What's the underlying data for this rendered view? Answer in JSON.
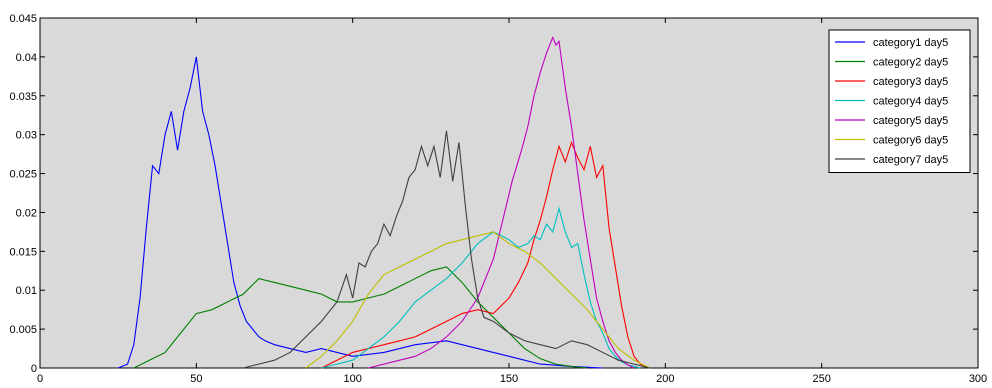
{
  "chart_data": {
    "type": "line",
    "title": "",
    "xlabel": "",
    "ylabel": "",
    "xlim": [
      0,
      300
    ],
    "ylim": [
      0,
      0.045
    ],
    "x_ticks": [
      0,
      50,
      100,
      150,
      200,
      250,
      300
    ],
    "y_ticks": [
      0,
      0.005,
      0.01,
      0.015,
      0.02,
      0.025,
      0.03,
      0.035,
      0.04,
      0.045
    ],
    "x_tick_labels": [
      "0",
      "50",
      "100",
      "150",
      "200",
      "250",
      "300"
    ],
    "y_tick_labels": [
      "0",
      "0.005",
      "0.01",
      "0.015",
      "0.02",
      "0.025",
      "0.03",
      "0.035",
      "0.04",
      "0.045"
    ],
    "grid": false,
    "legend_position": "top-right",
    "plot_background": "#d9d9d9",
    "series": [
      {
        "name": "category1 day5",
        "color": "#0000ff",
        "x": [
          25,
          28,
          30,
          32,
          34,
          36,
          38,
          40,
          42,
          44,
          46,
          48,
          50,
          52,
          54,
          56,
          58,
          60,
          62,
          64,
          66,
          68,
          70,
          72,
          75,
          80,
          85,
          90,
          95,
          100,
          110,
          120,
          130,
          140,
          150,
          160,
          170,
          180
        ],
        "y": [
          0,
          0.0005,
          0.003,
          0.009,
          0.018,
          0.026,
          0.025,
          0.03,
          0.033,
          0.028,
          0.033,
          0.036,
          0.04,
          0.033,
          0.03,
          0.026,
          0.021,
          0.016,
          0.011,
          0.008,
          0.006,
          0.005,
          0.004,
          0.0035,
          0.003,
          0.0025,
          0.002,
          0.0025,
          0.002,
          0.0015,
          0.002,
          0.003,
          0.0035,
          0.0025,
          0.0015,
          0.0005,
          0.0002,
          0
        ]
      },
      {
        "name": "category2 day5",
        "color": "#008000",
        "x": [
          30,
          35,
          40,
          45,
          50,
          55,
          60,
          65,
          70,
          75,
          80,
          85,
          90,
          95,
          100,
          105,
          110,
          115,
          120,
          125,
          130,
          135,
          140,
          145,
          150,
          155,
          160,
          165,
          170,
          175
        ],
        "y": [
          0,
          0.001,
          0.002,
          0.0045,
          0.007,
          0.0075,
          0.0085,
          0.0095,
          0.0115,
          0.011,
          0.0105,
          0.01,
          0.0095,
          0.0085,
          0.0085,
          0.009,
          0.0095,
          0.0105,
          0.0115,
          0.0125,
          0.013,
          0.011,
          0.0085,
          0.0065,
          0.0045,
          0.0025,
          0.0012,
          0.0005,
          0.0002,
          0
        ]
      },
      {
        "name": "category3 day5",
        "color": "#ff0000",
        "x": [
          90,
          95,
          100,
          105,
          110,
          115,
          120,
          125,
          130,
          135,
          140,
          145,
          150,
          153,
          156,
          158,
          160,
          162,
          164,
          166,
          168,
          170,
          172,
          174,
          176,
          178,
          180,
          182,
          184,
          186,
          188,
          190,
          192,
          195
        ],
        "y": [
          0,
          0.001,
          0.002,
          0.0025,
          0.003,
          0.0035,
          0.004,
          0.005,
          0.006,
          0.007,
          0.0075,
          0.007,
          0.009,
          0.011,
          0.0135,
          0.0165,
          0.019,
          0.022,
          0.0255,
          0.0285,
          0.0265,
          0.029,
          0.027,
          0.0255,
          0.0285,
          0.0245,
          0.026,
          0.018,
          0.013,
          0.008,
          0.004,
          0.0015,
          0.0005,
          0
        ]
      },
      {
        "name": "category4 day5",
        "color": "#00bfbf",
        "x": [
          90,
          95,
          100,
          105,
          110,
          115,
          120,
          125,
          130,
          135,
          140,
          145,
          150,
          153,
          156,
          158,
          160,
          162,
          164,
          166,
          168,
          170,
          172,
          174,
          176,
          178,
          180,
          182,
          184,
          186,
          188,
          190,
          192
        ],
        "y": [
          0,
          0.0005,
          0.001,
          0.0025,
          0.004,
          0.006,
          0.0085,
          0.01,
          0.0115,
          0.0135,
          0.016,
          0.0175,
          0.0165,
          0.0155,
          0.016,
          0.017,
          0.0165,
          0.0185,
          0.0175,
          0.0205,
          0.0175,
          0.0155,
          0.016,
          0.012,
          0.0085,
          0.006,
          0.0045,
          0.0025,
          0.0015,
          0.0008,
          0.0004,
          0.0002,
          0
        ]
      },
      {
        "name": "category5 day5",
        "color": "#bf00bf",
        "x": [
          105,
          110,
          115,
          120,
          125,
          130,
          135,
          140,
          145,
          148,
          151,
          154,
          156,
          158,
          160,
          162,
          164,
          165,
          166,
          167,
          168,
          170,
          172,
          174,
          176,
          178,
          180,
          182,
          184,
          186,
          188,
          190
        ],
        "y": [
          0,
          0.0005,
          0.001,
          0.0015,
          0.0025,
          0.004,
          0.006,
          0.009,
          0.014,
          0.019,
          0.024,
          0.028,
          0.031,
          0.035,
          0.038,
          0.0405,
          0.0425,
          0.0415,
          0.042,
          0.039,
          0.036,
          0.031,
          0.025,
          0.019,
          0.014,
          0.009,
          0.006,
          0.0035,
          0.002,
          0.001,
          0.0004,
          0
        ]
      },
      {
        "name": "category6 day5",
        "color": "#bfbf00",
        "x": [
          85,
          90,
          95,
          100,
          105,
          110,
          115,
          120,
          125,
          130,
          135,
          140,
          145,
          150,
          155,
          160,
          165,
          170,
          175,
          180,
          185,
          190,
          195
        ],
        "y": [
          0,
          0.0015,
          0.0035,
          0.006,
          0.0095,
          0.012,
          0.013,
          0.014,
          0.015,
          0.016,
          0.0165,
          0.017,
          0.0175,
          0.016,
          0.015,
          0.0135,
          0.0115,
          0.0095,
          0.0075,
          0.005,
          0.0025,
          0.001,
          0
        ]
      },
      {
        "name": "category7 day5",
        "color": "#404040",
        "x": [
          65,
          70,
          75,
          80,
          85,
          90,
          95,
          98,
          100,
          102,
          104,
          106,
          108,
          110,
          112,
          114,
          116,
          118,
          120,
          122,
          124,
          126,
          128,
          130,
          132,
          134,
          136,
          138,
          140,
          142,
          145,
          150,
          155,
          160,
          165,
          170,
          175,
          180,
          185,
          190,
          195
        ],
        "y": [
          0,
          0.0005,
          0.001,
          0.002,
          0.004,
          0.006,
          0.0085,
          0.012,
          0.009,
          0.0135,
          0.013,
          0.015,
          0.016,
          0.0185,
          0.017,
          0.0195,
          0.0215,
          0.0245,
          0.0255,
          0.0285,
          0.026,
          0.0285,
          0.0245,
          0.0305,
          0.024,
          0.029,
          0.021,
          0.014,
          0.009,
          0.0065,
          0.006,
          0.0045,
          0.0035,
          0.003,
          0.0025,
          0.0035,
          0.003,
          0.002,
          0.001,
          0.0005,
          0
        ]
      }
    ]
  }
}
